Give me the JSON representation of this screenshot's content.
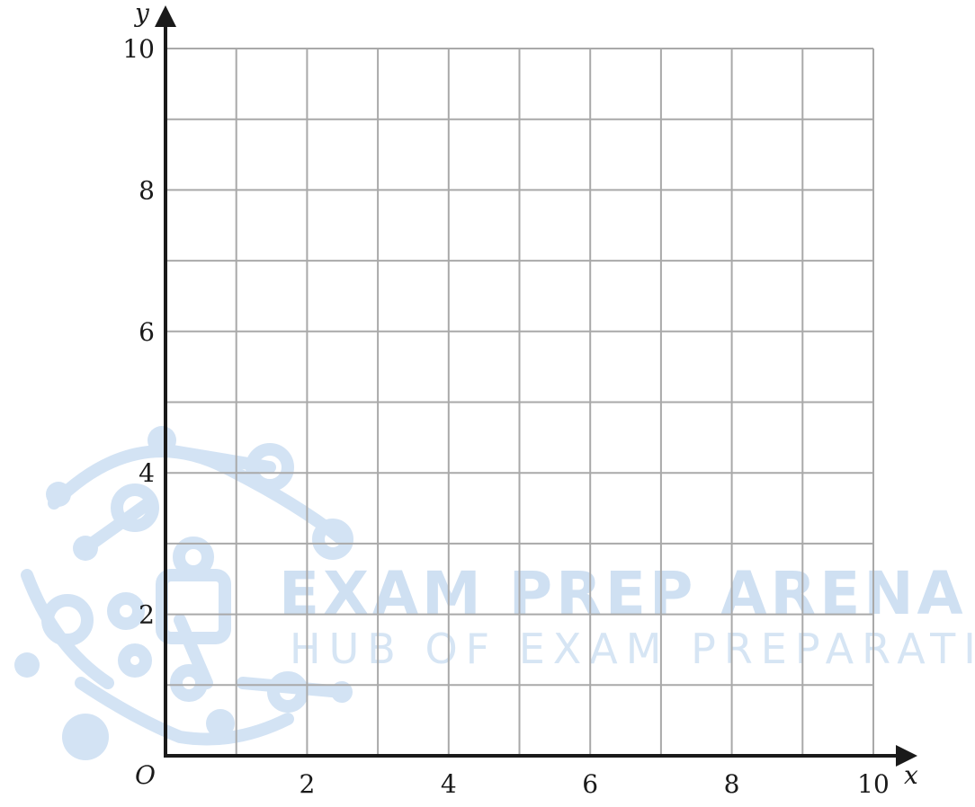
{
  "chart_data": {
    "type": "scatter",
    "title": "",
    "xlabel": "x",
    "ylabel": "y",
    "origin_label": "O",
    "xlim": [
      0,
      10
    ],
    "ylim": [
      0,
      10
    ],
    "grid": true,
    "grid_step": 1,
    "x_ticks": [
      "2",
      "4",
      "6",
      "8",
      "10"
    ],
    "y_ticks": [
      "2",
      "4",
      "6",
      "8",
      "10"
    ],
    "series": []
  },
  "watermark": {
    "title": "EXAM PREP ARENA",
    "subtitle": "HUB OF EXAM PREPARATION"
  },
  "colors": {
    "grid": "#a9a9a9",
    "axis": "#1a1a1a",
    "watermark": "#cfe0f2"
  }
}
